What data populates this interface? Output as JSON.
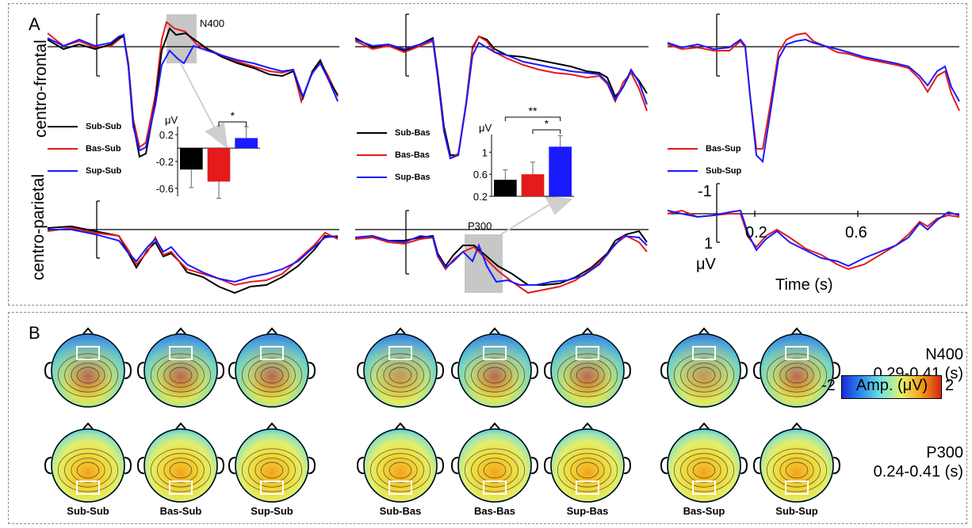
{
  "panel_a_label": "A",
  "panel_b_label": "B",
  "row_labels": {
    "top": "centro-frontal",
    "bottom": "centro-parietal"
  },
  "annotations": {
    "n400": "N400",
    "p300": "P300"
  },
  "legends": {
    "sub": [
      "Sub-Sub",
      "Bas-Sub",
      "Sup-Sub"
    ],
    "bas": [
      "Sub-Bas",
      "Bas-Bas",
      "Sup-Bas"
    ],
    "sup": [
      "Bas-Sup",
      "Sub-Sup"
    ]
  },
  "colors": {
    "black": "#000000",
    "red": "#e41a1c",
    "blue": "#1a1aff",
    "gray_box": "#bdbdbd"
  },
  "axis_key": {
    "ytop": "-1",
    "ybottom": "1",
    "unit": "μV",
    "x1": "0.2",
    "x2": "0.6",
    "xlabel": "Time (s)"
  },
  "topo_labels": [
    "Sub-Sub",
    "Bas-Sub",
    "Sup-Sub",
    "Sub-Bas",
    "Bas-Bas",
    "Sup-Bas",
    "Bas-Sup",
    "Sub-Sup"
  ],
  "components": {
    "n400_name": "N400",
    "n400_range": "0.29-0.41 (s)",
    "p300_name": "P300",
    "p300_range": "0.24-0.41 (s)"
  },
  "colorbar": {
    "min": "-2",
    "label": "Amp. (μV)",
    "max": "2"
  },
  "chart_data": [
    {
      "type": "bar",
      "ylabel": "μV",
      "categories": [
        "Sub-Sub",
        "Bas-Sub",
        "Sup-Sub"
      ],
      "values": [
        -0.32,
        -0.5,
        0.15
      ],
      "errors": [
        0.27,
        0.25,
        0.17
      ],
      "yticks": [
        "0.2",
        "-0.2",
        "-0.6"
      ],
      "ylim": [
        -0.72,
        0.32
      ],
      "significance": [
        "*"
      ]
    },
    {
      "type": "bar",
      "ylabel": "μV",
      "categories": [
        "Sub-Bas",
        "Bas-Bas",
        "Sup-Bas"
      ],
      "values": [
        0.5,
        0.6,
        1.1
      ],
      "errors": [
        0.18,
        0.22,
        0.2
      ],
      "yticks": [
        "1",
        "0.6",
        "0.2"
      ],
      "ylim": [
        0.2,
        1.32
      ],
      "significance": [
        "**",
        "*"
      ]
    }
  ]
}
